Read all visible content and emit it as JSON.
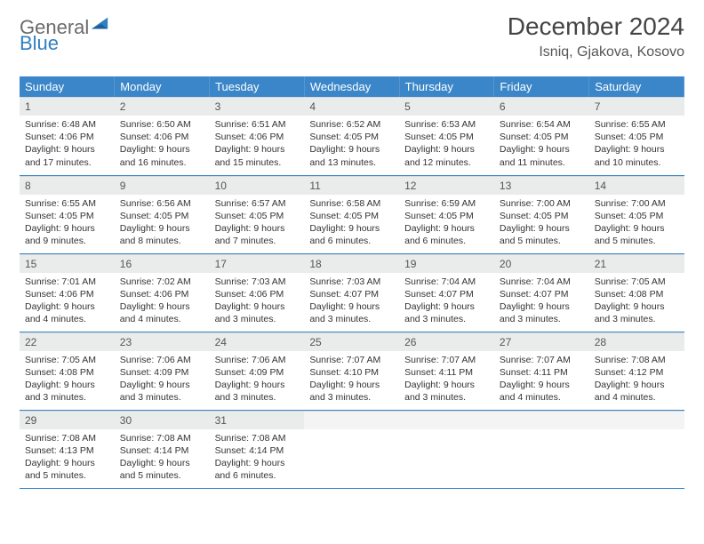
{
  "logo": {
    "text_top": "General",
    "text_bottom": "Blue"
  },
  "title": "December 2024",
  "location": "Isniq, Gjakova, Kosovo",
  "colors": {
    "header_bg": "#3a86c8",
    "header_text": "#ffffff",
    "daynum_bg": "#e9eceb",
    "body_text": "#333333",
    "rule": "#3a86c8",
    "logo_grey": "#6b6b6b",
    "logo_blue": "#2f7fc2"
  },
  "weekdays": [
    "Sunday",
    "Monday",
    "Tuesday",
    "Wednesday",
    "Thursday",
    "Friday",
    "Saturday"
  ],
  "weeks": [
    [
      {
        "n": "1",
        "sunrise": "Sunrise: 6:48 AM",
        "sunset": "Sunset: 4:06 PM",
        "day1": "Daylight: 9 hours",
        "day2": "and 17 minutes."
      },
      {
        "n": "2",
        "sunrise": "Sunrise: 6:50 AM",
        "sunset": "Sunset: 4:06 PM",
        "day1": "Daylight: 9 hours",
        "day2": "and 16 minutes."
      },
      {
        "n": "3",
        "sunrise": "Sunrise: 6:51 AM",
        "sunset": "Sunset: 4:06 PM",
        "day1": "Daylight: 9 hours",
        "day2": "and 15 minutes."
      },
      {
        "n": "4",
        "sunrise": "Sunrise: 6:52 AM",
        "sunset": "Sunset: 4:05 PM",
        "day1": "Daylight: 9 hours",
        "day2": "and 13 minutes."
      },
      {
        "n": "5",
        "sunrise": "Sunrise: 6:53 AM",
        "sunset": "Sunset: 4:05 PM",
        "day1": "Daylight: 9 hours",
        "day2": "and 12 minutes."
      },
      {
        "n": "6",
        "sunrise": "Sunrise: 6:54 AM",
        "sunset": "Sunset: 4:05 PM",
        "day1": "Daylight: 9 hours",
        "day2": "and 11 minutes."
      },
      {
        "n": "7",
        "sunrise": "Sunrise: 6:55 AM",
        "sunset": "Sunset: 4:05 PM",
        "day1": "Daylight: 9 hours",
        "day2": "and 10 minutes."
      }
    ],
    [
      {
        "n": "8",
        "sunrise": "Sunrise: 6:55 AM",
        "sunset": "Sunset: 4:05 PM",
        "day1": "Daylight: 9 hours",
        "day2": "and 9 minutes."
      },
      {
        "n": "9",
        "sunrise": "Sunrise: 6:56 AM",
        "sunset": "Sunset: 4:05 PM",
        "day1": "Daylight: 9 hours",
        "day2": "and 8 minutes."
      },
      {
        "n": "10",
        "sunrise": "Sunrise: 6:57 AM",
        "sunset": "Sunset: 4:05 PM",
        "day1": "Daylight: 9 hours",
        "day2": "and 7 minutes."
      },
      {
        "n": "11",
        "sunrise": "Sunrise: 6:58 AM",
        "sunset": "Sunset: 4:05 PM",
        "day1": "Daylight: 9 hours",
        "day2": "and 6 minutes."
      },
      {
        "n": "12",
        "sunrise": "Sunrise: 6:59 AM",
        "sunset": "Sunset: 4:05 PM",
        "day1": "Daylight: 9 hours",
        "day2": "and 6 minutes."
      },
      {
        "n": "13",
        "sunrise": "Sunrise: 7:00 AM",
        "sunset": "Sunset: 4:05 PM",
        "day1": "Daylight: 9 hours",
        "day2": "and 5 minutes."
      },
      {
        "n": "14",
        "sunrise": "Sunrise: 7:00 AM",
        "sunset": "Sunset: 4:05 PM",
        "day1": "Daylight: 9 hours",
        "day2": "and 5 minutes."
      }
    ],
    [
      {
        "n": "15",
        "sunrise": "Sunrise: 7:01 AM",
        "sunset": "Sunset: 4:06 PM",
        "day1": "Daylight: 9 hours",
        "day2": "and 4 minutes."
      },
      {
        "n": "16",
        "sunrise": "Sunrise: 7:02 AM",
        "sunset": "Sunset: 4:06 PM",
        "day1": "Daylight: 9 hours",
        "day2": "and 4 minutes."
      },
      {
        "n": "17",
        "sunrise": "Sunrise: 7:03 AM",
        "sunset": "Sunset: 4:06 PM",
        "day1": "Daylight: 9 hours",
        "day2": "and 3 minutes."
      },
      {
        "n": "18",
        "sunrise": "Sunrise: 7:03 AM",
        "sunset": "Sunset: 4:07 PM",
        "day1": "Daylight: 9 hours",
        "day2": "and 3 minutes."
      },
      {
        "n": "19",
        "sunrise": "Sunrise: 7:04 AM",
        "sunset": "Sunset: 4:07 PM",
        "day1": "Daylight: 9 hours",
        "day2": "and 3 minutes."
      },
      {
        "n": "20",
        "sunrise": "Sunrise: 7:04 AM",
        "sunset": "Sunset: 4:07 PM",
        "day1": "Daylight: 9 hours",
        "day2": "and 3 minutes."
      },
      {
        "n": "21",
        "sunrise": "Sunrise: 7:05 AM",
        "sunset": "Sunset: 4:08 PM",
        "day1": "Daylight: 9 hours",
        "day2": "and 3 minutes."
      }
    ],
    [
      {
        "n": "22",
        "sunrise": "Sunrise: 7:05 AM",
        "sunset": "Sunset: 4:08 PM",
        "day1": "Daylight: 9 hours",
        "day2": "and 3 minutes."
      },
      {
        "n": "23",
        "sunrise": "Sunrise: 7:06 AM",
        "sunset": "Sunset: 4:09 PM",
        "day1": "Daylight: 9 hours",
        "day2": "and 3 minutes."
      },
      {
        "n": "24",
        "sunrise": "Sunrise: 7:06 AM",
        "sunset": "Sunset: 4:09 PM",
        "day1": "Daylight: 9 hours",
        "day2": "and 3 minutes."
      },
      {
        "n": "25",
        "sunrise": "Sunrise: 7:07 AM",
        "sunset": "Sunset: 4:10 PM",
        "day1": "Daylight: 9 hours",
        "day2": "and 3 minutes."
      },
      {
        "n": "26",
        "sunrise": "Sunrise: 7:07 AM",
        "sunset": "Sunset: 4:11 PM",
        "day1": "Daylight: 9 hours",
        "day2": "and 3 minutes."
      },
      {
        "n": "27",
        "sunrise": "Sunrise: 7:07 AM",
        "sunset": "Sunset: 4:11 PM",
        "day1": "Daylight: 9 hours",
        "day2": "and 4 minutes."
      },
      {
        "n": "28",
        "sunrise": "Sunrise: 7:08 AM",
        "sunset": "Sunset: 4:12 PM",
        "day1": "Daylight: 9 hours",
        "day2": "and 4 minutes."
      }
    ],
    [
      {
        "n": "29",
        "sunrise": "Sunrise: 7:08 AM",
        "sunset": "Sunset: 4:13 PM",
        "day1": "Daylight: 9 hours",
        "day2": "and 5 minutes."
      },
      {
        "n": "30",
        "sunrise": "Sunrise: 7:08 AM",
        "sunset": "Sunset: 4:14 PM",
        "day1": "Daylight: 9 hours",
        "day2": "and 5 minutes."
      },
      {
        "n": "31",
        "sunrise": "Sunrise: 7:08 AM",
        "sunset": "Sunset: 4:14 PM",
        "day1": "Daylight: 9 hours",
        "day2": "and 6 minutes."
      },
      null,
      null,
      null,
      null
    ]
  ]
}
